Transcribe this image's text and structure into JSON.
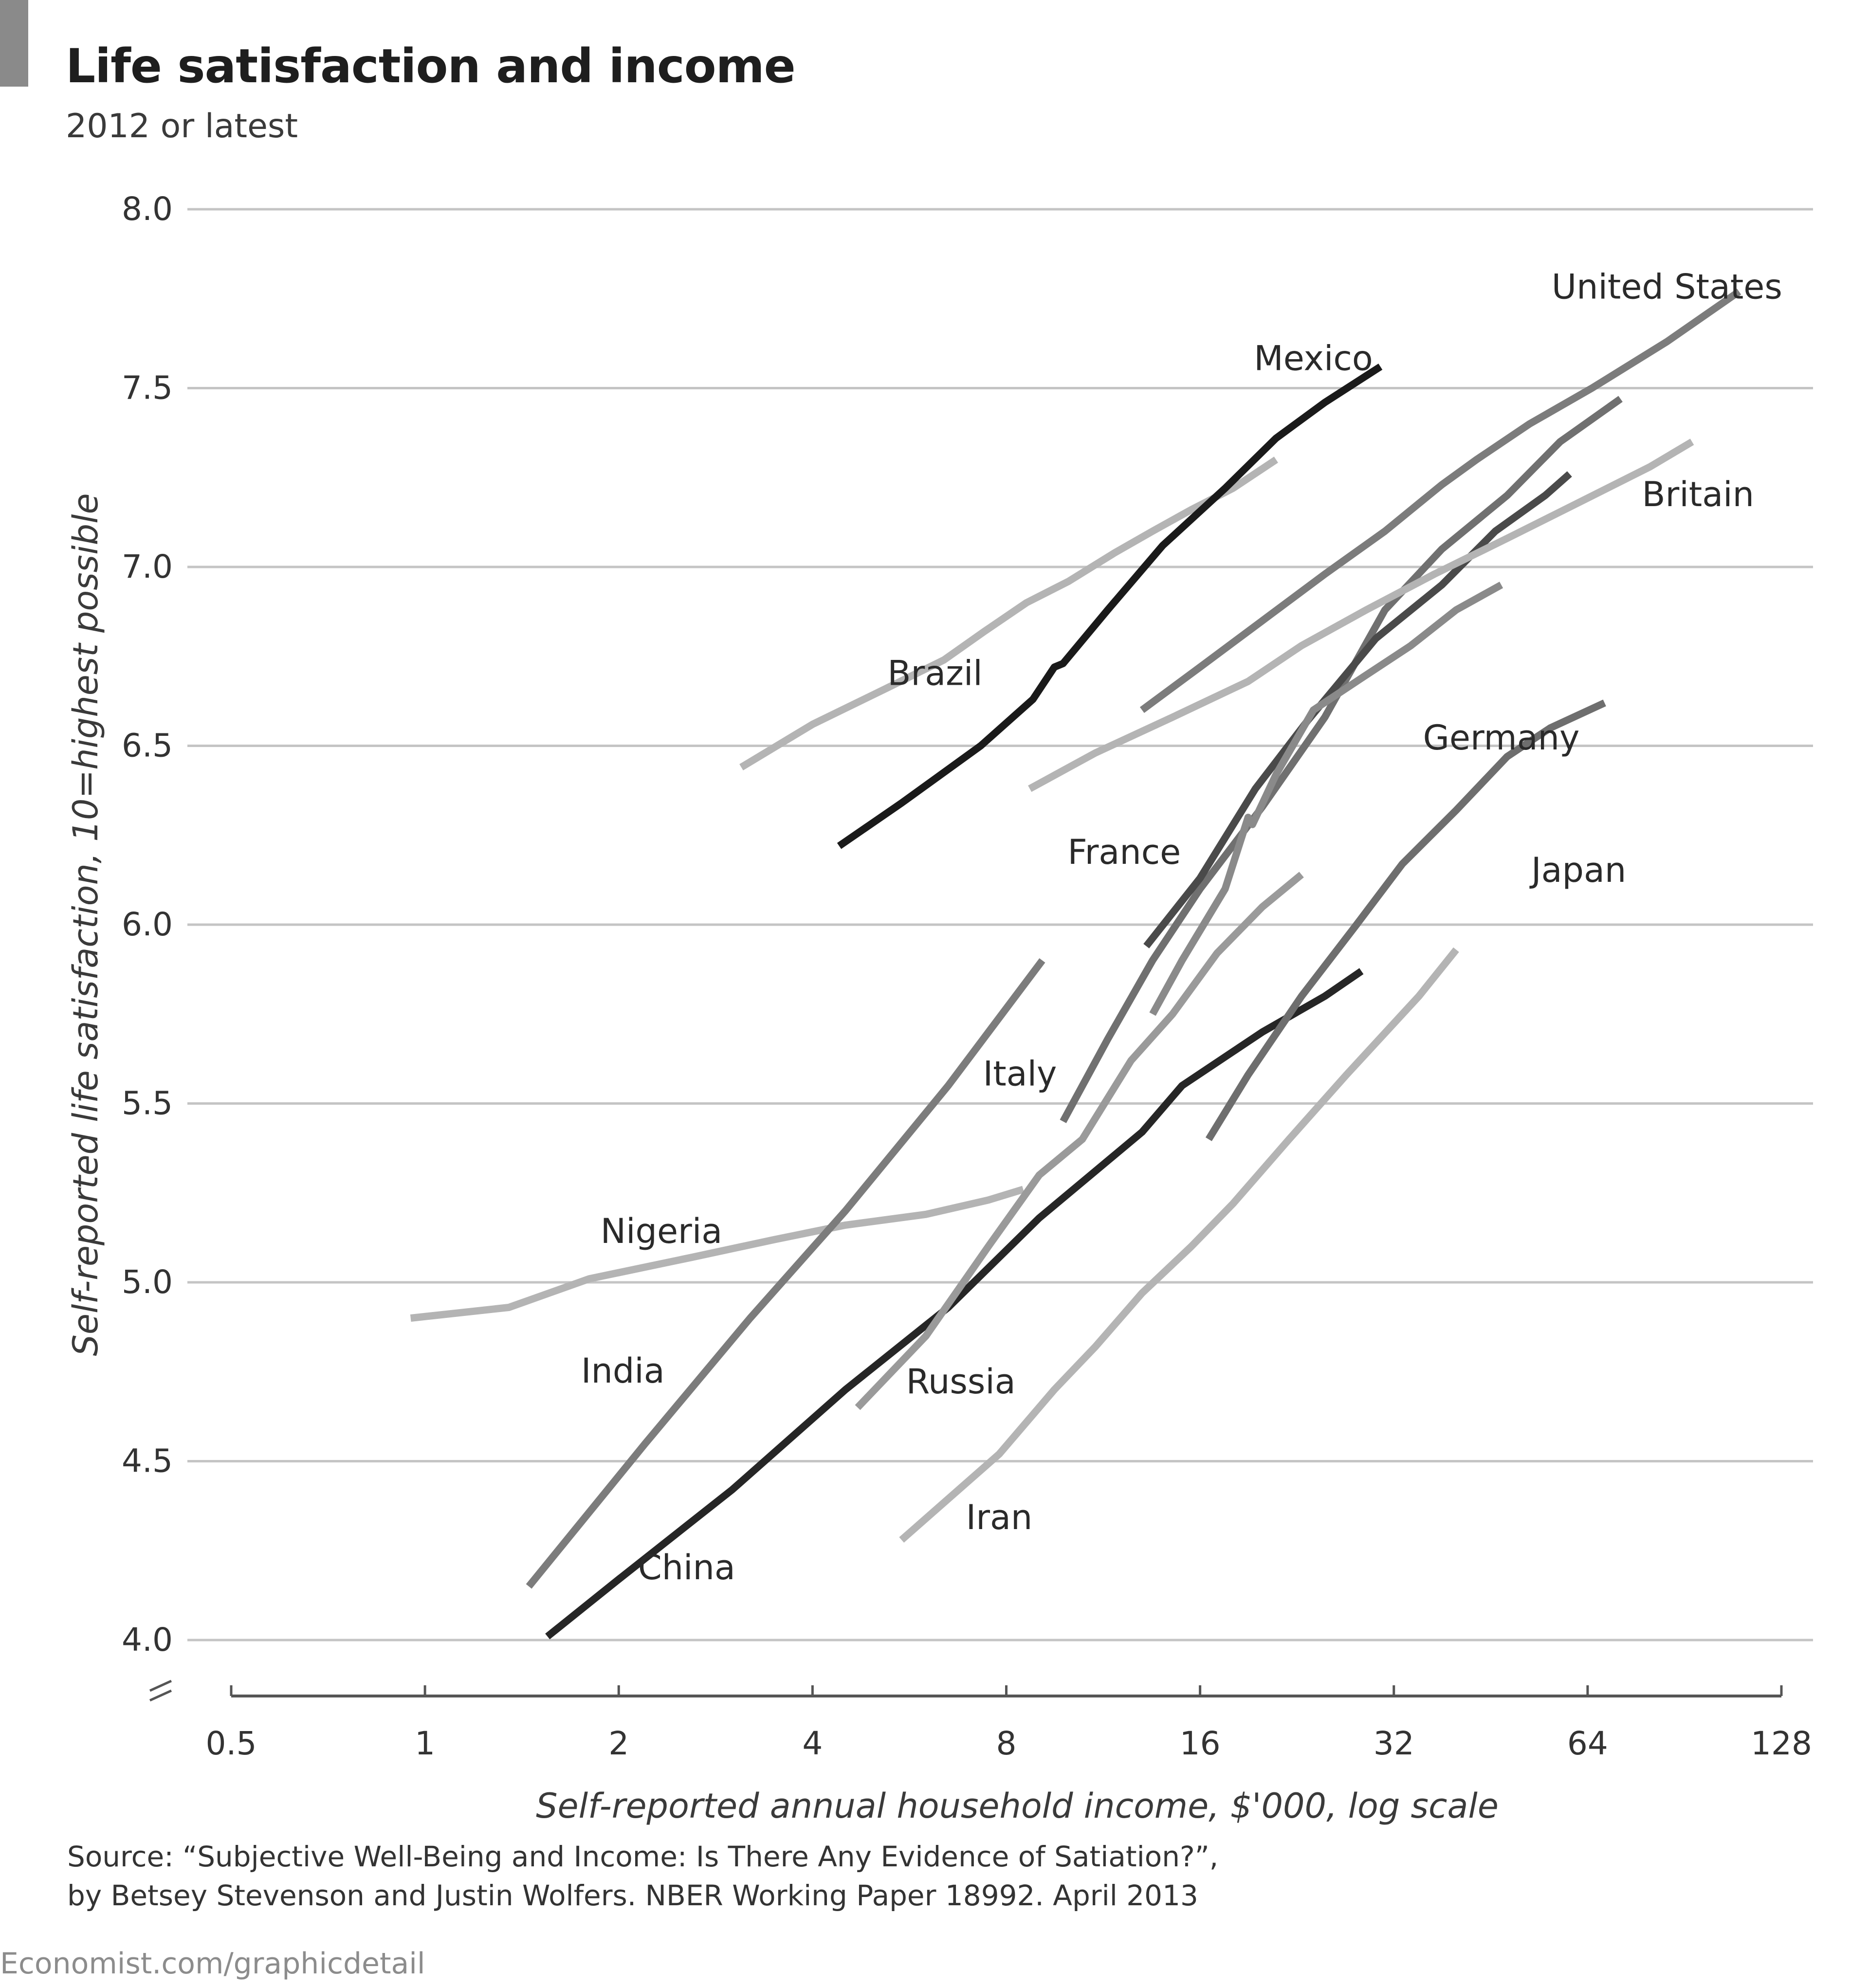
{
  "header": {
    "title": "Life satisfaction and income",
    "subtitle": "2012 or latest"
  },
  "footer": {
    "source_line1": "Source: “Subjective Well-Being and Income: Is There Any Evidence of Satiation?”,",
    "source_line2": "by Betsey Stevenson and Justin Wolfers. NBER Working Paper 18992. April 2013",
    "credit": "Economist.com/graphicdetail"
  },
  "chart_data": {
    "type": "line",
    "title": "Life satisfaction and income",
    "subtitle": "2012 or latest",
    "xlabel": "Self-reported annual household income, $'000, log scale",
    "ylabel": "Self-reported life satisfaction, 10=highest possible",
    "x_scale": "log2",
    "xlim": [
      0.5,
      128
    ],
    "ylim": [
      4.0,
      8.0
    ],
    "x_ticks": [
      0.5,
      1,
      2,
      4,
      8,
      16,
      32,
      64,
      128
    ],
    "x_tick_labels": [
      "0.5",
      "1",
      "2",
      "4",
      "8",
      "16",
      "32",
      "64",
      "128"
    ],
    "y_ticks": [
      4.0,
      4.5,
      5.0,
      5.5,
      6.0,
      6.5,
      7.0,
      7.5,
      8.0
    ],
    "y_tick_labels": [
      "4.0",
      "4.5",
      "5.0",
      "5.5",
      "6.0",
      "6.5",
      "7.0",
      "7.5",
      "8.0"
    ],
    "y_axis_break": true,
    "grid": "horizontal",
    "series": [
      {
        "name": "Nigeria",
        "color": "#b4b4b4",
        "x": [
          0.95,
          1.35,
          1.8,
          2.6,
          3.5,
          4.5,
          6.0,
          7.5,
          8.5
        ],
        "y": [
          4.9,
          4.93,
          5.01,
          5.07,
          5.12,
          5.16,
          5.19,
          5.23,
          5.26
        ]
      },
      {
        "name": "India",
        "color": "#7c7c7c",
        "x": [
          1.45,
          2.2,
          3.2,
          4.5,
          6.5,
          9.1
        ],
        "y": [
          4.15,
          4.55,
          4.9,
          5.2,
          5.55,
          5.9
        ]
      },
      {
        "name": "China",
        "color": "#262626",
        "x": [
          1.55,
          2.0,
          3.0,
          4.5,
          6.5,
          9.0,
          13.0,
          15.0,
          20.0,
          25.0,
          28.5
        ],
        "y": [
          4.01,
          4.17,
          4.42,
          4.7,
          4.93,
          5.18,
          5.42,
          5.55,
          5.7,
          5.8,
          5.87
        ]
      },
      {
        "name": "Iran",
        "color": "#b4b4b4",
        "x": [
          5.5,
          7.8,
          9.5,
          11.0,
          13.0,
          15.5,
          18.0,
          22.0,
          27.0,
          35.0,
          40.0
        ],
        "y": [
          4.28,
          4.52,
          4.7,
          4.82,
          4.97,
          5.1,
          5.22,
          5.4,
          5.58,
          5.8,
          5.93
        ]
      },
      {
        "name": "Russia",
        "color": "#9a9a9a",
        "x": [
          4.7,
          6.0,
          7.5,
          9.0,
          10.5,
          12.5,
          14.5,
          17.0,
          20.0,
          23.0
        ],
        "y": [
          4.65,
          4.85,
          5.1,
          5.3,
          5.4,
          5.62,
          5.75,
          5.92,
          6.05,
          6.14
        ]
      },
      {
        "name": "Italy",
        "color": "#707070",
        "x": [
          9.8,
          11.5,
          13.5,
          16.0,
          20.0,
          25.0,
          31.0,
          38.0,
          48.0,
          58.0,
          72.0
        ],
        "y": [
          5.45,
          5.68,
          5.9,
          6.1,
          6.33,
          6.58,
          6.88,
          7.05,
          7.2,
          7.35,
          7.47
        ]
      },
      {
        "name": "France",
        "color": "#4a4a4a",
        "x": [
          13.2,
          16.0,
          19.5,
          23.5,
          30.0,
          38.0,
          46.0,
          55.0,
          60.0
        ],
        "y": [
          5.94,
          6.13,
          6.38,
          6.57,
          6.8,
          6.95,
          7.1,
          7.2,
          7.26
        ]
      },
      {
        "name": "Germany",
        "color": "#8a8a8a",
        "x": [
          13.5,
          15.0,
          17.5,
          19.0,
          19.3,
          21.0,
          24.0,
          28.0,
          34.0,
          40.0,
          47.0
        ],
        "y": [
          5.75,
          5.9,
          6.1,
          6.3,
          6.28,
          6.42,
          6.6,
          6.68,
          6.78,
          6.88,
          6.95
        ]
      },
      {
        "name": "Japan",
        "color": "#6e6e6e",
        "x": [
          16.5,
          19.0,
          23.0,
          28.0,
          33.0,
          40.0,
          48.0,
          56.0,
          68.0
        ],
        "y": [
          5.4,
          5.58,
          5.8,
          6.0,
          6.17,
          6.32,
          6.47,
          6.55,
          6.62
        ]
      },
      {
        "name": "Britain",
        "color": "#b4b4b4",
        "x": [
          8.7,
          11.0,
          14.5,
          19.0,
          23.0,
          29.0,
          37.0,
          48.0,
          62.0,
          80.0,
          93.0
        ],
        "y": [
          6.38,
          6.48,
          6.58,
          6.68,
          6.78,
          6.88,
          6.98,
          7.08,
          7.18,
          7.28,
          7.35
        ]
      },
      {
        "name": "United States",
        "color": "#7c7c7c",
        "x": [
          13.0,
          16.0,
          20.0,
          25.0,
          31.0,
          38.0,
          43.0,
          52.0,
          65.0,
          85.0,
          110.0
        ],
        "y": [
          6.6,
          6.72,
          6.85,
          6.98,
          7.1,
          7.23,
          7.3,
          7.4,
          7.5,
          7.63,
          7.77
        ]
      },
      {
        "name": "Brazil",
        "color": "#b4b4b4",
        "x": [
          3.1,
          4.0,
          5.2,
          6.4,
          7.4,
          8.6,
          10.0,
          11.8,
          13.5,
          15.5,
          18.0,
          21.0
        ],
        "y": [
          6.44,
          6.56,
          6.66,
          6.74,
          6.82,
          6.9,
          6.96,
          7.04,
          7.1,
          7.16,
          7.22,
          7.3
        ]
      },
      {
        "name": "Mexico",
        "color": "#1a1a1a",
        "x": [
          4.4,
          5.5,
          7.3,
          8.8,
          9.5,
          9.8,
          11.5,
          14.0,
          17.5,
          21.0,
          25.0,
          30.5
        ],
        "y": [
          6.22,
          6.34,
          6.5,
          6.63,
          6.72,
          6.73,
          6.88,
          7.06,
          7.22,
          7.36,
          7.46,
          7.56
        ]
      }
    ],
    "annotations": [
      {
        "text": "United States",
        "x": 85.0,
        "y": 7.78
      },
      {
        "text": "Mexico",
        "x": 24.0,
        "y": 7.58
      },
      {
        "text": "Britain",
        "x": 95.0,
        "y": 7.2
      },
      {
        "text": "Brazil",
        "x": 6.2,
        "y": 6.7
      },
      {
        "text": "Germany",
        "x": 47.0,
        "y": 6.52
      },
      {
        "text": "Japan",
        "x": 62.0,
        "y": 6.15
      },
      {
        "text": "France",
        "x": 12.2,
        "y": 6.2
      },
      {
        "text": "Italy",
        "x": 8.4,
        "y": 5.58
      },
      {
        "text": "Nigeria",
        "x": 2.33,
        "y": 5.14
      },
      {
        "text": "India",
        "x": 2.03,
        "y": 4.75
      },
      {
        "text": "Russia",
        "x": 6.8,
        "y": 4.72
      },
      {
        "text": "Iran",
        "x": 7.8,
        "y": 4.34
      },
      {
        "text": "China",
        "x": 2.55,
        "y": 4.2
      }
    ]
  }
}
